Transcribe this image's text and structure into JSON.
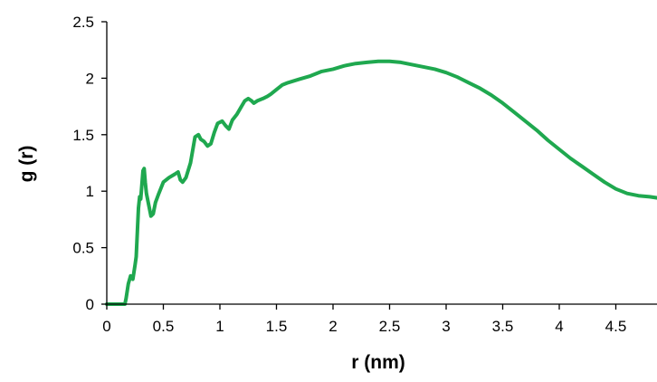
{
  "chart_data": {
    "type": "line",
    "title": "",
    "xlabel": "r (nm)",
    "ylabel": "g (r)",
    "xlim": [
      0,
      4.87
    ],
    "ylim": [
      0,
      2.5
    ],
    "x_ticks": [
      "0",
      "0.5",
      "1",
      "1.5",
      "2",
      "2.5",
      "3",
      "3.5",
      "4",
      "4.5"
    ],
    "y_ticks": [
      "0",
      "0.5",
      "1",
      "1.5",
      "2",
      "2.5"
    ],
    "grid": false,
    "legend": "none",
    "series": [
      {
        "color": "#1fa84f",
        "x": [
          0.0,
          0.16,
          0.17,
          0.19,
          0.21,
          0.23,
          0.25,
          0.26,
          0.28,
          0.29,
          0.3,
          0.32,
          0.33,
          0.34,
          0.35,
          0.37,
          0.39,
          0.41,
          0.43,
          0.46,
          0.5,
          0.55,
          0.6,
          0.63,
          0.65,
          0.67,
          0.7,
          0.74,
          0.78,
          0.81,
          0.83,
          0.86,
          0.89,
          0.92,
          0.95,
          0.98,
          1.02,
          1.05,
          1.08,
          1.11,
          1.15,
          1.19,
          1.22,
          1.25,
          1.28,
          1.3,
          1.33,
          1.38,
          1.42,
          1.45,
          1.5,
          1.55,
          1.6,
          1.7,
          1.8,
          1.9,
          2.0,
          2.1,
          2.2,
          2.3,
          2.4,
          2.5,
          2.6,
          2.7,
          2.8,
          2.9,
          3.0,
          3.1,
          3.2,
          3.3,
          3.4,
          3.5,
          3.6,
          3.7,
          3.8,
          3.9,
          4.0,
          4.1,
          4.2,
          4.3,
          4.4,
          4.5,
          4.6,
          4.7,
          4.8,
          4.87
        ],
        "y": [
          0.0,
          0.0,
          0.05,
          0.18,
          0.25,
          0.22,
          0.35,
          0.42,
          0.85,
          0.95,
          0.93,
          1.18,
          1.2,
          1.08,
          0.98,
          0.88,
          0.78,
          0.8,
          0.9,
          0.98,
          1.08,
          1.12,
          1.15,
          1.17,
          1.1,
          1.08,
          1.12,
          1.25,
          1.48,
          1.5,
          1.46,
          1.44,
          1.4,
          1.42,
          1.52,
          1.6,
          1.62,
          1.58,
          1.55,
          1.63,
          1.68,
          1.75,
          1.8,
          1.82,
          1.8,
          1.78,
          1.8,
          1.82,
          1.84,
          1.86,
          1.9,
          1.94,
          1.96,
          1.99,
          2.02,
          2.06,
          2.08,
          2.11,
          2.13,
          2.14,
          2.15,
          2.15,
          2.14,
          2.12,
          2.1,
          2.08,
          2.05,
          2.01,
          1.96,
          1.91,
          1.85,
          1.78,
          1.7,
          1.62,
          1.54,
          1.45,
          1.37,
          1.29,
          1.22,
          1.15,
          1.08,
          1.02,
          0.98,
          0.96,
          0.95,
          0.94
        ]
      }
    ]
  }
}
